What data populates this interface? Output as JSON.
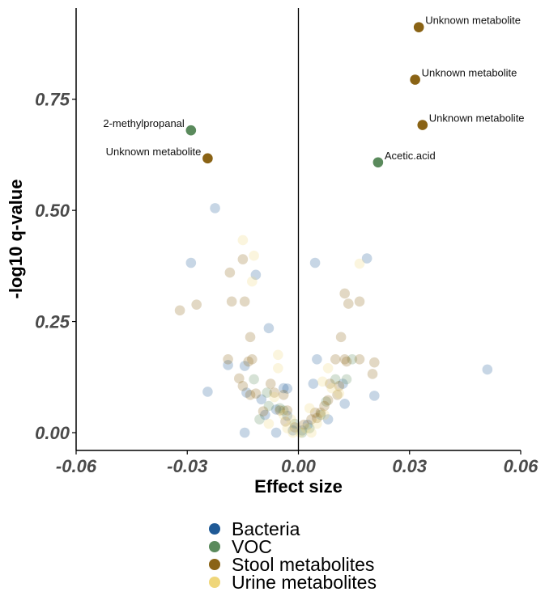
{
  "chart_data": {
    "type": "scatter",
    "title": "",
    "xlabel": "Effect size",
    "ylabel": "-log10 q-value",
    "xlim": [
      -0.06,
      0.06
    ],
    "ylim": [
      -0.04,
      0.955
    ],
    "x_ticks": [
      "-0.06",
      "-0.03",
      "0.00",
      "0.03",
      "0.06"
    ],
    "y_ticks": [
      "0.00",
      "0.25",
      "0.50",
      "0.75"
    ],
    "vertical_reference_line": 0.0,
    "legend_position": "bottom",
    "series": [
      {
        "name": "Bacteria",
        "color": "#1f5a96",
        "points": [
          [
            -0.0225,
            0.505
          ],
          [
            -0.029,
            0.382
          ],
          [
            -0.0115,
            0.355
          ],
          [
            -0.008,
            0.235
          ],
          [
            -0.0245,
            0.092
          ],
          [
            -0.019,
            0.152
          ],
          [
            -0.0145,
            0.15
          ],
          [
            -0.014,
            0.09
          ],
          [
            -0.01,
            0.075
          ],
          [
            -0.006,
            0.052
          ],
          [
            -0.004,
            0.1
          ],
          [
            -0.003,
            0.099
          ],
          [
            -0.009,
            0.04
          ],
          [
            -0.006,
            0.0
          ],
          [
            -0.0145,
            0.0
          ],
          [
            -0.003,
            0.038
          ],
          [
            0.0045,
            0.382
          ],
          [
            0.0185,
            0.392
          ],
          [
            0.051,
            0.142
          ],
          [
            0.005,
            0.165
          ],
          [
            0.004,
            0.11
          ],
          [
            0.012,
            0.11
          ],
          [
            0.0125,
            0.065
          ],
          [
            0.0205,
            0.083
          ],
          [
            0.008,
            0.03
          ],
          [
            0.0025,
            0.018
          ],
          [
            0.001,
            0.005
          ],
          [
            -0.0015,
            0.005
          ]
        ]
      },
      {
        "name": "VOC",
        "color": "#5a8a5c",
        "points": [
          [
            -0.029,
            0.68
          ],
          [
            0.0215,
            0.608
          ],
          [
            -0.012,
            0.12
          ],
          [
            -0.0085,
            0.09
          ],
          [
            -0.008,
            0.06
          ],
          [
            -0.005,
            0.055
          ],
          [
            -0.0105,
            0.03
          ],
          [
            -0.001,
            0.02
          ],
          [
            0.0075,
            0.07
          ],
          [
            0.01,
            0.12
          ],
          [
            0.013,
            0.12
          ],
          [
            0.006,
            0.04
          ],
          [
            0.003,
            0.01
          ],
          [
            0.0145,
            0.165
          ],
          [
            -0.004,
            0.05
          ],
          [
            0.001,
            0.0
          ]
        ]
      },
      {
        "name": "Stool metabolites",
        "color": "#8a6315",
        "points": [
          [
            0.0325,
            0.912
          ],
          [
            0.0315,
            0.794
          ],
          [
            0.0335,
            0.692
          ],
          [
            -0.0245,
            0.617
          ],
          [
            -0.032,
            0.275
          ],
          [
            -0.0275,
            0.288
          ],
          [
            -0.0185,
            0.36
          ],
          [
            -0.015,
            0.39
          ],
          [
            -0.018,
            0.295
          ],
          [
            -0.0145,
            0.295
          ],
          [
            -0.013,
            0.215
          ],
          [
            -0.019,
            0.165
          ],
          [
            -0.0125,
            0.165
          ],
          [
            -0.0135,
            0.16
          ],
          [
            -0.016,
            0.122
          ],
          [
            -0.015,
            0.105
          ],
          [
            -0.013,
            0.085
          ],
          [
            -0.0115,
            0.088
          ],
          [
            -0.0075,
            0.11
          ],
          [
            -0.0065,
            0.09
          ],
          [
            -0.004,
            0.085
          ],
          [
            -0.005,
            0.05
          ],
          [
            -0.0095,
            0.048
          ],
          [
            -0.003,
            0.05
          ],
          [
            -0.0035,
            0.025
          ],
          [
            0.0125,
            0.313
          ],
          [
            0.0135,
            0.29
          ],
          [
            0.0165,
            0.295
          ],
          [
            0.0115,
            0.215
          ],
          [
            0.01,
            0.165
          ],
          [
            0.0125,
            0.165
          ],
          [
            0.013,
            0.16
          ],
          [
            0.0165,
            0.165
          ],
          [
            0.0205,
            0.158
          ],
          [
            0.02,
            0.132
          ],
          [
            0.0085,
            0.11
          ],
          [
            0.011,
            0.105
          ],
          [
            0.0105,
            0.085
          ],
          [
            0.008,
            0.073
          ],
          [
            0.007,
            0.06
          ],
          [
            0.006,
            0.045
          ],
          [
            0.0045,
            0.045
          ],
          [
            0.0035,
            0.03
          ],
          [
            0.0015,
            0.018
          ],
          [
            -0.001,
            0.012
          ],
          [
            0.005,
            0.033
          ]
        ]
      },
      {
        "name": "Urine metabolites",
        "color": "#efd67a",
        "points": [
          [
            -0.015,
            0.433
          ],
          [
            -0.012,
            0.398
          ],
          [
            -0.0125,
            0.34
          ],
          [
            0.0165,
            0.38
          ],
          [
            -0.0055,
            0.175
          ],
          [
            -0.0055,
            0.145
          ],
          [
            -0.0065,
            0.08
          ],
          [
            -0.004,
            0.04
          ],
          [
            -0.003,
            0.01
          ],
          [
            -0.0015,
            0.0
          ],
          [
            0.0005,
            0.0
          ],
          [
            0.002,
            0.01
          ],
          [
            0.0065,
            0.115
          ],
          [
            0.008,
            0.145
          ],
          [
            0.011,
            0.088
          ],
          [
            0.007,
            0.04
          ],
          [
            0.005,
            0.02
          ],
          [
            -0.002,
            0.03
          ],
          [
            0.003,
            0.055
          ],
          [
            0.009,
            0.1
          ],
          [
            -0.008,
            0.02
          ],
          [
            0.0035,
            0.0
          ]
        ]
      }
    ],
    "annotations": [
      {
        "text": "Unknown metabolite",
        "x": 0.0325,
        "y": 0.912,
        "side": "right"
      },
      {
        "text": "Unknown metabolite",
        "x": 0.0315,
        "y": 0.794,
        "side": "right"
      },
      {
        "text": "Unknown metabolite",
        "x": 0.0335,
        "y": 0.692,
        "side": "right"
      },
      {
        "text": "2-methylpropanal",
        "x": -0.029,
        "y": 0.68,
        "side": "left"
      },
      {
        "text": "Unknown metabolite",
        "x": -0.0245,
        "y": 0.617,
        "side": "left"
      },
      {
        "text": "Acetic.acid",
        "x": 0.0215,
        "y": 0.608,
        "side": "right"
      }
    ]
  }
}
